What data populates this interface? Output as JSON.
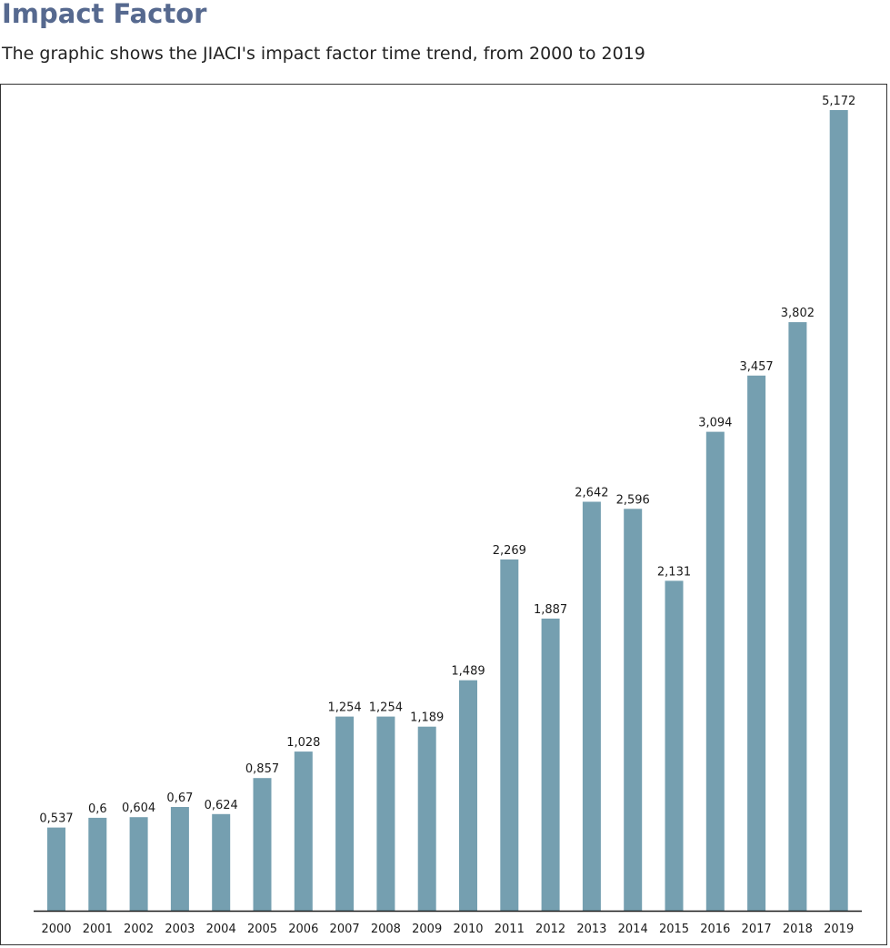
{
  "header": {
    "title": "Impact Factor",
    "subtitle": "The graphic shows the JIACI's impact factor time trend, from 2000 to 2019"
  },
  "colors": {
    "bar": "#759fb0",
    "axis": "#1a1a1a",
    "title": "#56698f"
  },
  "chart_data": {
    "type": "bar",
    "title": "Impact Factor",
    "subtitle": "The graphic shows the JIACI's impact factor time trend, from 2000 to 2019",
    "xlabel": "",
    "ylabel": "",
    "ylim": [
      0,
      5.172
    ],
    "grid": false,
    "legend": "none",
    "categories": [
      "2000",
      "2001",
      "2002",
      "2003",
      "2004",
      "2005",
      "2006",
      "2007",
      "2008",
      "2009",
      "2010",
      "2011",
      "2012",
      "2013",
      "2014",
      "2015",
      "2016",
      "2017",
      "2018",
      "2019"
    ],
    "values": [
      0.537,
      0.6,
      0.604,
      0.67,
      0.624,
      0.857,
      1.028,
      1.254,
      1.254,
      1.189,
      1.489,
      2.269,
      1.887,
      2.642,
      2.596,
      2.131,
      3.094,
      3.457,
      3.802,
      5.172
    ],
    "data_labels": [
      "0,537",
      "0,6",
      "0,604",
      "0,67",
      "0,624",
      "0,857",
      "1,028",
      "1,254",
      "1,254",
      "1,189",
      "1,489",
      "2,269",
      "1,887",
      "2,642",
      "2,596",
      "2,131",
      "3,094",
      "3,457",
      "3,802",
      "5,172"
    ]
  }
}
